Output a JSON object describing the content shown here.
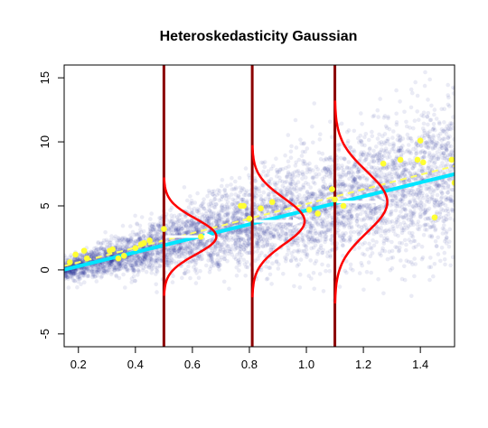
{
  "chart_data": {
    "type": "scatter",
    "title": "Heteroskedasticity Gaussian",
    "xlabel": "",
    "ylabel": "",
    "xlim": [
      0.15,
      1.52
    ],
    "ylim": [
      -6,
      16
    ],
    "x_ticks": [
      0.2,
      0.4,
      0.6,
      0.8,
      1.0,
      1.2,
      1.4
    ],
    "x_tick_labels": [
      "0.2",
      "0.4",
      "0.6",
      "0.8",
      "1.0",
      "1.2",
      "1.4"
    ],
    "y_ticks": [
      -5,
      0,
      5,
      10,
      15
    ],
    "y_tick_labels": [
      "-5",
      "0",
      "5",
      "10",
      "15"
    ],
    "grid": false,
    "cloud": {
      "color": "#1a1f8c",
      "mean_intercept": -0.8,
      "mean_slope": 5.5,
      "sd_intercept": 0.1,
      "sd_slope": 2.0
    },
    "sample_points": {
      "color": "#ffff33",
      "x": [
        0.17,
        0.19,
        0.22,
        0.23,
        0.31,
        0.32,
        0.34,
        0.36,
        0.4,
        0.42,
        0.43,
        0.45,
        0.5,
        0.63,
        0.77,
        0.78,
        0.8,
        0.84,
        0.88,
        1.01,
        1.04,
        1.09,
        1.1,
        1.13,
        1.27,
        1.33,
        1.39,
        1.4,
        1.41,
        1.45,
        1.51,
        1.52
      ],
      "y": [
        0.6,
        1.2,
        1.5,
        0.9,
        1.5,
        1.6,
        0.9,
        1.1,
        1.7,
        2.0,
        2.1,
        2.3,
        3.2,
        2.6,
        5.0,
        5.0,
        4.0,
        4.8,
        5.3,
        4.7,
        4.4,
        6.3,
        5.5,
        5.0,
        8.3,
        8.6,
        8.6,
        10.1,
        8.4,
        4.1,
        8.6,
        6.8
      ]
    },
    "fit_line": {
      "color": "#00e5ff",
      "intercept": -0.8,
      "slope": 5.45
    },
    "true_line": {
      "color": "#ffff66",
      "style": "dashed",
      "intercept": -0.55,
      "slope": 5.7
    },
    "slices": {
      "line_color": "#8b0000",
      "density_color": "#ff0000",
      "x": [
        0.5,
        0.81,
        1.1
      ],
      "mean": [
        2.6,
        3.8,
        5.3
      ],
      "sd": [
        1.4,
        1.8,
        2.4
      ],
      "arrow_color": "#ffffff"
    }
  }
}
